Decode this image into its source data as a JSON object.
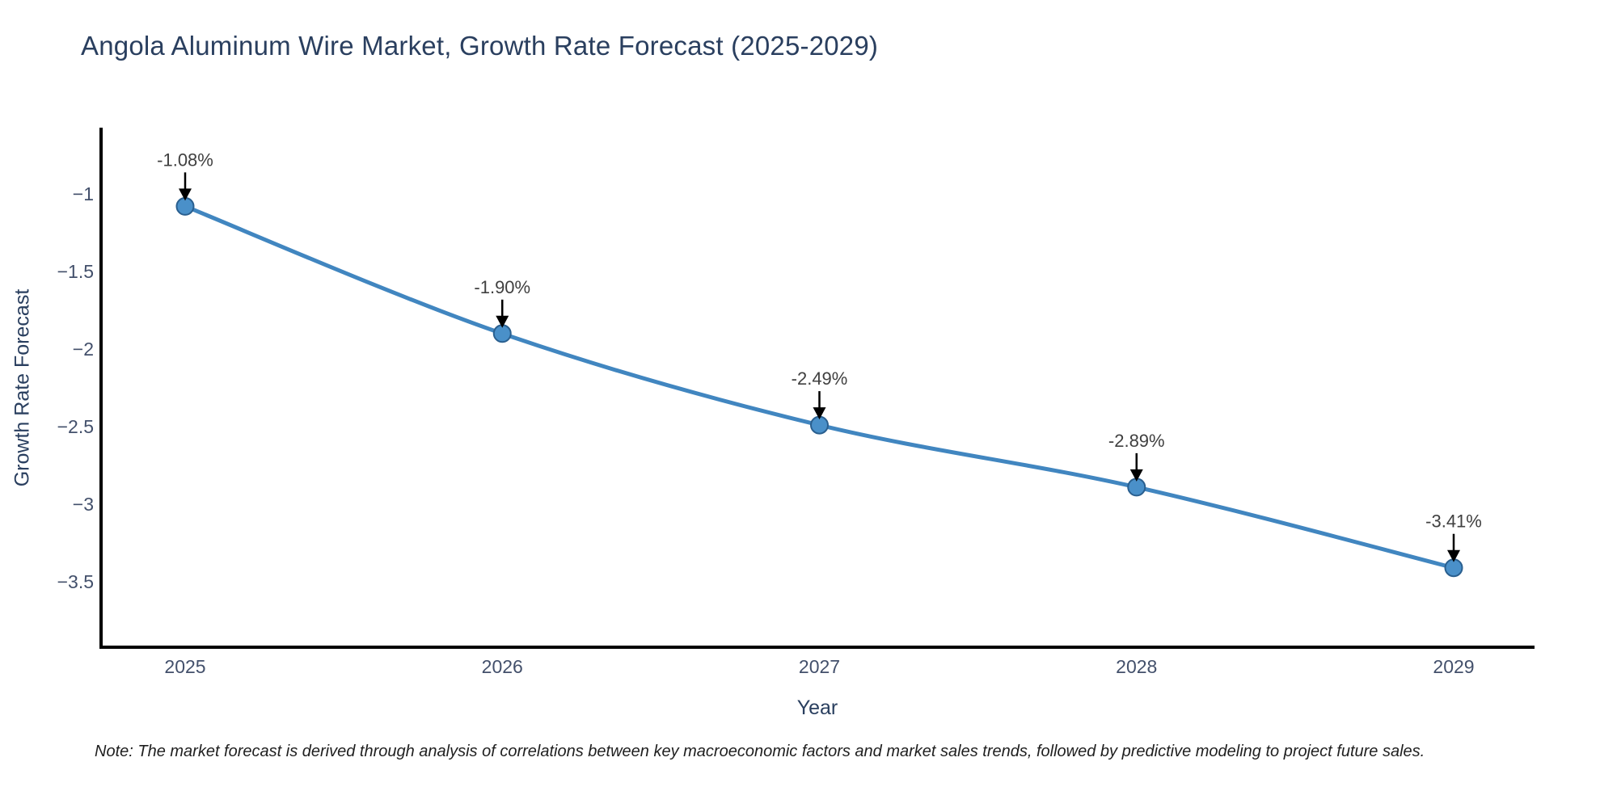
{
  "title": "Angola Aluminum Wire Market, Growth Rate Forecast (2025-2029)",
  "note": "Note: The market forecast is derived through analysis of correlations between key macroeconomic factors and market sales trends, followed by predictive modeling to project future sales.",
  "chart_data": {
    "type": "line",
    "title": "Angola Aluminum Wire Market, Growth Rate Forecast (2025-2029)",
    "xlabel": "Year",
    "ylabel": "Growth Rate Forecast",
    "x": [
      2025,
      2026,
      2027,
      2028,
      2029
    ],
    "series": [
      {
        "name": "Growth Rate Forecast",
        "values": [
          -1.08,
          -1.9,
          -2.49,
          -2.89,
          -3.41
        ],
        "point_labels": [
          "-1.08%",
          "-1.90%",
          "-2.49%",
          "-2.89%",
          "-3.41%"
        ]
      }
    ],
    "xtick_labels": [
      "2025",
      "2026",
      "2027",
      "2028",
      "2029"
    ],
    "ytick_values": [
      -1,
      -1.5,
      -2,
      -2.5,
      -3,
      -3.5
    ],
    "ytick_labels": [
      "−1",
      "−1.5",
      "−2",
      "−2.5",
      "−3",
      "−3.5"
    ],
    "ylim": [
      -3.92,
      -0.58
    ],
    "grid": false,
    "legend_position": "none",
    "annotations": "value labels with down arrows above each point",
    "colors": {
      "line": "#4186c0",
      "marker_fill": "#4a90c9",
      "marker_edge": "#2a5f8f",
      "arrow": "#000000",
      "axis": "#000000",
      "title_text": "#2a3f5f",
      "tick_text": "#43506b",
      "annotation_text": "#404040",
      "background": "#ffffff"
    }
  }
}
